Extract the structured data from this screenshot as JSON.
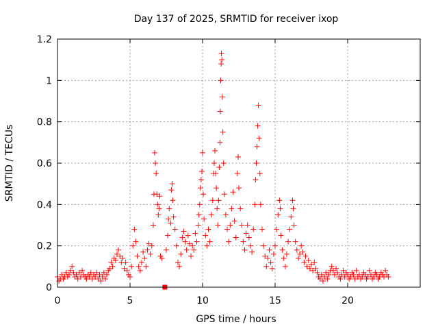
{
  "chart_data": {
    "type": "scatter",
    "title": "Day 137 of 2025, SRMTID for receiver ixop",
    "xlabel": "GPS time / hours",
    "ylabel": "SRMTID / TECUs",
    "xlim": [
      0,
      25
    ],
    "ylim": [
      0,
      1.2
    ],
    "xticks": [
      0,
      5,
      10,
      15,
      20
    ],
    "xtick_labels": [
      "0",
      "5",
      "10",
      "15",
      "20"
    ],
    "yticks": [
      0,
      0.2,
      0.4,
      0.6,
      0.8,
      1.0,
      1.2
    ],
    "ytick_labels": [
      "0",
      "0.2",
      "0.4",
      "0.6",
      "0.8",
      "1",
      "1.2"
    ],
    "grid": true,
    "marker": "plus",
    "color": "#ff0000",
    "square_markers": [
      {
        "x": 7.4,
        "y": 0.0
      }
    ],
    "series": [
      {
        "name": "SRMTID",
        "points": [
          [
            0.0,
            0.05
          ],
          [
            0.1,
            0.03
          ],
          [
            0.2,
            0.04
          ],
          [
            0.3,
            0.06
          ],
          [
            0.4,
            0.04
          ],
          [
            0.5,
            0.05
          ],
          [
            0.6,
            0.07
          ],
          [
            0.7,
            0.05
          ],
          [
            0.8,
            0.06
          ],
          [
            0.9,
            0.08
          ],
          [
            1.0,
            0.1
          ],
          [
            1.1,
            0.07
          ],
          [
            1.2,
            0.05
          ],
          [
            1.3,
            0.06
          ],
          [
            1.4,
            0.04
          ],
          [
            1.5,
            0.07
          ],
          [
            1.6,
            0.05
          ],
          [
            1.7,
            0.08
          ],
          [
            1.8,
            0.06
          ],
          [
            1.9,
            0.05
          ],
          [
            2.0,
            0.04
          ],
          [
            2.1,
            0.06
          ],
          [
            2.2,
            0.05
          ],
          [
            2.3,
            0.07
          ],
          [
            2.4,
            0.04
          ],
          [
            2.5,
            0.06
          ],
          [
            2.6,
            0.05
          ],
          [
            2.7,
            0.07
          ],
          [
            2.8,
            0.04
          ],
          [
            2.9,
            0.06
          ],
          [
            3.0,
            0.03
          ],
          [
            3.1,
            0.05
          ],
          [
            3.2,
            0.07
          ],
          [
            3.3,
            0.04
          ],
          [
            3.4,
            0.06
          ],
          [
            3.5,
            0.08
          ],
          [
            3.6,
            0.09
          ],
          [
            3.7,
            0.12
          ],
          [
            3.8,
            0.1
          ],
          [
            3.9,
            0.14
          ],
          [
            4.0,
            0.13
          ],
          [
            4.1,
            0.16
          ],
          [
            4.2,
            0.18
          ],
          [
            4.3,
            0.15
          ],
          [
            4.4,
            0.12
          ],
          [
            4.5,
            0.14
          ],
          [
            4.6,
            0.09
          ],
          [
            4.7,
            0.12
          ],
          [
            4.8,
            0.08
          ],
          [
            4.9,
            0.06
          ],
          [
            5.0,
            0.05
          ],
          [
            5.1,
            0.1
          ],
          [
            5.2,
            0.2
          ],
          [
            5.3,
            0.28
          ],
          [
            5.4,
            0.22
          ],
          [
            5.5,
            0.15
          ],
          [
            5.6,
            0.1
          ],
          [
            5.7,
            0.08
          ],
          [
            5.8,
            0.12
          ],
          [
            5.9,
            0.17
          ],
          [
            6.0,
            0.14
          ],
          [
            6.1,
            0.1
          ],
          [
            6.2,
            0.18
          ],
          [
            6.3,
            0.21
          ],
          [
            6.4,
            0.16
          ],
          [
            6.5,
            0.2
          ],
          [
            6.6,
            0.3
          ],
          [
            6.65,
            0.45
          ],
          [
            6.7,
            0.65
          ],
          [
            6.75,
            0.6
          ],
          [
            6.8,
            0.55
          ],
          [
            6.85,
            0.45
          ],
          [
            6.9,
            0.4
          ],
          [
            6.95,
            0.35
          ],
          [
            7.0,
            0.38
          ],
          [
            7.05,
            0.44
          ],
          [
            7.1,
            0.15
          ],
          [
            7.2,
            0.14
          ],
          [
            7.5,
            0.18
          ],
          [
            7.6,
            0.25
          ],
          [
            7.65,
            0.33
          ],
          [
            7.7,
            0.38
          ],
          [
            7.8,
            0.31
          ],
          [
            7.85,
            0.47
          ],
          [
            7.9,
            0.5
          ],
          [
            7.95,
            0.42
          ],
          [
            8.0,
            0.34
          ],
          [
            8.1,
            0.28
          ],
          [
            8.2,
            0.2
          ],
          [
            8.3,
            0.12
          ],
          [
            8.4,
            0.1
          ],
          [
            8.5,
            0.16
          ],
          [
            8.6,
            0.24
          ],
          [
            8.7,
            0.27
          ],
          [
            8.8,
            0.22
          ],
          [
            8.9,
            0.18
          ],
          [
            9.0,
            0.25
          ],
          [
            9.1,
            0.21
          ],
          [
            9.2,
            0.15
          ],
          [
            9.3,
            0.2
          ],
          [
            9.4,
            0.18
          ],
          [
            9.5,
            0.26
          ],
          [
            9.6,
            0.22
          ],
          [
            9.7,
            0.3
          ],
          [
            9.75,
            0.35
          ],
          [
            9.8,
            0.4
          ],
          [
            9.85,
            0.48
          ],
          [
            9.9,
            0.52
          ],
          [
            9.95,
            0.56
          ],
          [
            10.0,
            0.65
          ],
          [
            10.05,
            0.45
          ],
          [
            10.1,
            0.33
          ],
          [
            10.2,
            0.25
          ],
          [
            10.3,
            0.2
          ],
          [
            10.4,
            0.28
          ],
          [
            10.5,
            0.22
          ],
          [
            10.6,
            0.35
          ],
          [
            10.7,
            0.42
          ],
          [
            10.75,
            0.55
          ],
          [
            10.8,
            0.6
          ],
          [
            10.85,
            0.66
          ],
          [
            10.9,
            0.55
          ],
          [
            10.95,
            0.48
          ],
          [
            11.0,
            0.38
          ],
          [
            11.05,
            0.3
          ],
          [
            11.1,
            0.42
          ],
          [
            11.15,
            0.58
          ],
          [
            11.2,
            0.7
          ],
          [
            11.22,
            0.85
          ],
          [
            11.25,
            1.0
          ],
          [
            11.28,
            1.08
          ],
          [
            11.3,
            1.13
          ],
          [
            11.33,
            1.1
          ],
          [
            11.36,
            0.92
          ],
          [
            11.4,
            0.75
          ],
          [
            11.45,
            0.6
          ],
          [
            11.5,
            0.45
          ],
          [
            11.6,
            0.35
          ],
          [
            11.7,
            0.28
          ],
          [
            11.8,
            0.22
          ],
          [
            11.9,
            0.3
          ],
          [
            12.0,
            0.38
          ],
          [
            12.1,
            0.46
          ],
          [
            12.2,
            0.32
          ],
          [
            12.3,
            0.24
          ],
          [
            12.4,
            0.55
          ],
          [
            12.45,
            0.63
          ],
          [
            12.5,
            0.48
          ],
          [
            12.6,
            0.38
          ],
          [
            12.7,
            0.3
          ],
          [
            12.8,
            0.22
          ],
          [
            12.9,
            0.18
          ],
          [
            13.0,
            0.26
          ],
          [
            13.1,
            0.3
          ],
          [
            13.2,
            0.24
          ],
          [
            13.3,
            0.2
          ],
          [
            13.4,
            0.17
          ],
          [
            13.5,
            0.28
          ],
          [
            13.6,
            0.4
          ],
          [
            13.65,
            0.52
          ],
          [
            13.7,
            0.6
          ],
          [
            13.75,
            0.68
          ],
          [
            13.8,
            0.78
          ],
          [
            13.85,
            0.88
          ],
          [
            13.9,
            0.72
          ],
          [
            13.95,
            0.55
          ],
          [
            14.0,
            0.4
          ],
          [
            14.1,
            0.28
          ],
          [
            14.2,
            0.2
          ],
          [
            14.3,
            0.15
          ],
          [
            14.4,
            0.1
          ],
          [
            14.5,
            0.14
          ],
          [
            14.6,
            0.18
          ],
          [
            14.7,
            0.12
          ],
          [
            14.8,
            0.09
          ],
          [
            14.9,
            0.16
          ],
          [
            15.0,
            0.2
          ],
          [
            15.1,
            0.28
          ],
          [
            15.2,
            0.35
          ],
          [
            15.3,
            0.42
          ],
          [
            15.35,
            0.38
          ],
          [
            15.4,
            0.25
          ],
          [
            15.5,
            0.18
          ],
          [
            15.6,
            0.14
          ],
          [
            15.7,
            0.1
          ],
          [
            15.8,
            0.16
          ],
          [
            15.9,
            0.22
          ],
          [
            16.0,
            0.28
          ],
          [
            16.1,
            0.34
          ],
          [
            16.2,
            0.42
          ],
          [
            16.25,
            0.38
          ],
          [
            16.3,
            0.3
          ],
          [
            16.4,
            0.22
          ],
          [
            16.5,
            0.18
          ],
          [
            16.6,
            0.14
          ],
          [
            16.7,
            0.16
          ],
          [
            16.8,
            0.2
          ],
          [
            16.9,
            0.17
          ],
          [
            17.0,
            0.12
          ],
          [
            17.1,
            0.15
          ],
          [
            17.2,
            0.1
          ],
          [
            17.3,
            0.13
          ],
          [
            17.4,
            0.09
          ],
          [
            17.5,
            0.11
          ],
          [
            17.6,
            0.08
          ],
          [
            17.7,
            0.12
          ],
          [
            17.8,
            0.09
          ],
          [
            17.9,
            0.07
          ],
          [
            18.0,
            0.05
          ],
          [
            18.1,
            0.04
          ],
          [
            18.2,
            0.06
          ],
          [
            18.3,
            0.03
          ],
          [
            18.4,
            0.05
          ],
          [
            18.5,
            0.07
          ],
          [
            18.6,
            0.04
          ],
          [
            18.7,
            0.06
          ],
          [
            18.8,
            0.08
          ],
          [
            18.9,
            0.1
          ],
          [
            19.0,
            0.08
          ],
          [
            19.1,
            0.06
          ],
          [
            19.2,
            0.09
          ],
          [
            19.3,
            0.07
          ],
          [
            19.4,
            0.05
          ],
          [
            19.5,
            0.04
          ],
          [
            19.6,
            0.06
          ],
          [
            19.7,
            0.08
          ],
          [
            19.8,
            0.05
          ],
          [
            19.9,
            0.07
          ],
          [
            20.0,
            0.06
          ],
          [
            20.1,
            0.04
          ],
          [
            20.2,
            0.05
          ],
          [
            20.3,
            0.07
          ],
          [
            20.4,
            0.06
          ],
          [
            20.5,
            0.04
          ],
          [
            20.6,
            0.08
          ],
          [
            20.7,
            0.05
          ],
          [
            20.8,
            0.06
          ],
          [
            20.9,
            0.04
          ],
          [
            21.0,
            0.05
          ],
          [
            21.1,
            0.07
          ],
          [
            21.2,
            0.06
          ],
          [
            21.3,
            0.04
          ],
          [
            21.4,
            0.05
          ],
          [
            21.5,
            0.08
          ],
          [
            21.6,
            0.06
          ],
          [
            21.7,
            0.04
          ],
          [
            21.8,
            0.05
          ],
          [
            21.9,
            0.07
          ],
          [
            22.0,
            0.06
          ],
          [
            22.1,
            0.04
          ],
          [
            22.2,
            0.05
          ],
          [
            22.3,
            0.07
          ],
          [
            22.4,
            0.06
          ],
          [
            22.5,
            0.05
          ],
          [
            22.6,
            0.08
          ],
          [
            22.7,
            0.06
          ],
          [
            22.8,
            0.05
          ]
        ]
      }
    ]
  }
}
